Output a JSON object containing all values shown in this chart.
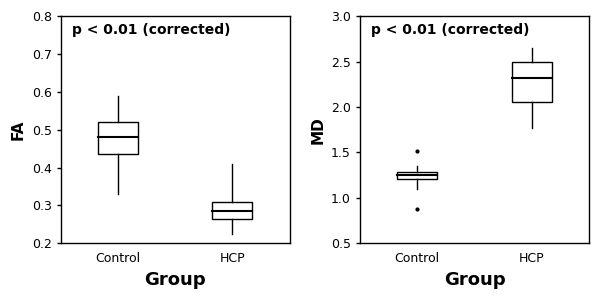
{
  "fa": {
    "ylabel": "FA",
    "xlabel": "Group",
    "annotation": "p < 0.01 (corrected)",
    "ylim": [
      0.2,
      0.8
    ],
    "yticks": [
      0.2,
      0.3,
      0.4,
      0.5,
      0.6,
      0.7,
      0.8
    ],
    "categories": [
      "Control",
      "HCP"
    ],
    "control": {
      "median": 0.48,
      "q1": 0.435,
      "q3": 0.52,
      "whislo": 0.33,
      "whishi": 0.59,
      "fliers": []
    },
    "hcp": {
      "median": 0.285,
      "q1": 0.265,
      "q3": 0.31,
      "whislo": 0.225,
      "whishi": 0.41,
      "fliers": []
    }
  },
  "md": {
    "ylabel": "MD",
    "xlabel": "Group",
    "annotation": "p < 0.01 (corrected)",
    "ylim": [
      0.5,
      3.0
    ],
    "yticks": [
      0.5,
      1.0,
      1.5,
      2.0,
      2.5,
      3.0
    ],
    "categories": [
      "Control",
      "HCP"
    ],
    "control": {
      "median": 1.25,
      "q1": 1.21,
      "q3": 1.28,
      "whislo": 1.1,
      "whishi": 1.35,
      "fliers": [
        0.88,
        1.52
      ]
    },
    "hcp": {
      "median": 2.32,
      "q1": 2.05,
      "q3": 2.5,
      "whislo": 1.77,
      "whishi": 2.65,
      "fliers": []
    }
  },
  "background_color": "#ffffff",
  "box_facecolor": "#ffffff",
  "line_color": "#000000",
  "annotation_fontsize": 10,
  "ylabel_fontsize": 11,
  "xlabel_fontsize": 13,
  "tick_fontsize": 9,
  "box_width": 0.35,
  "linewidth": 1.0
}
